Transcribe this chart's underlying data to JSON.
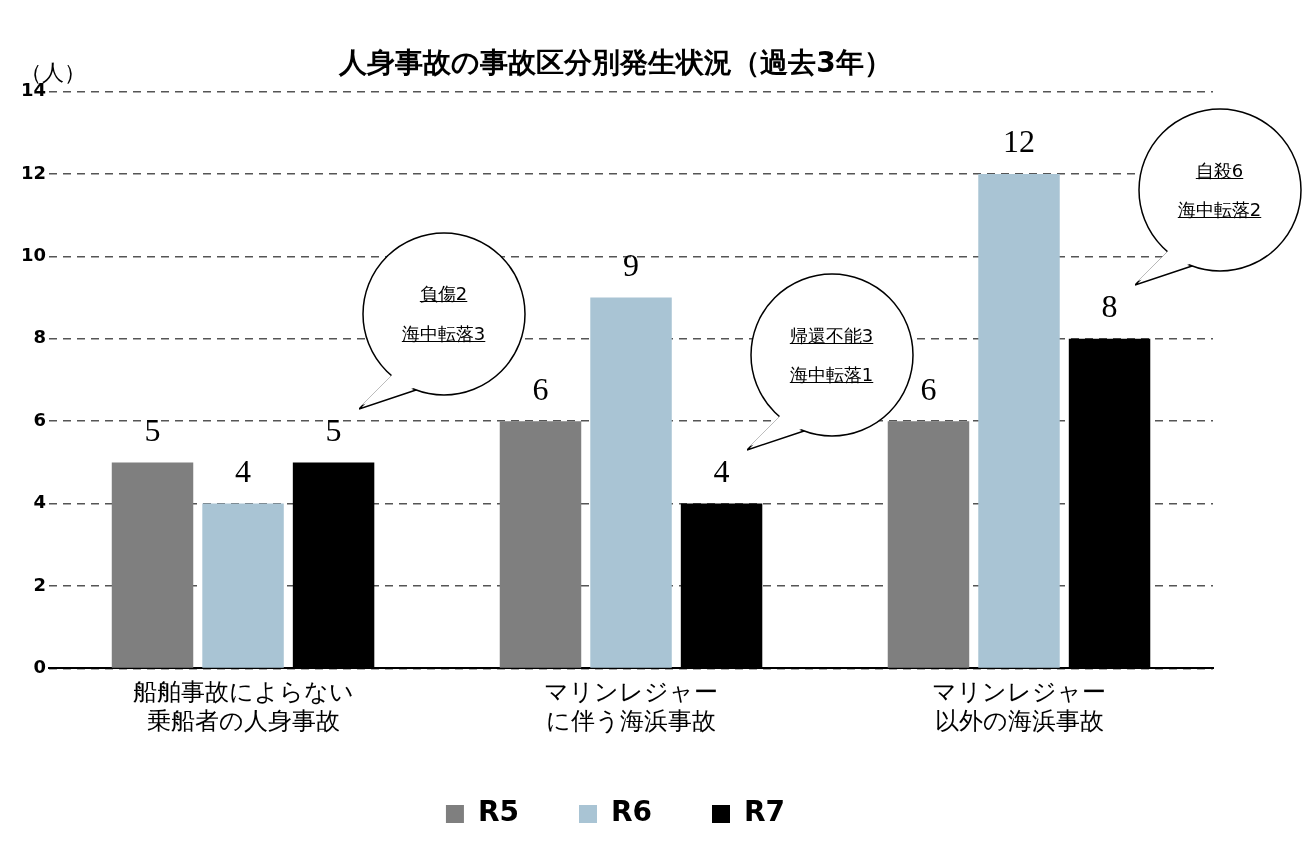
{
  "chart_data": {
    "type": "bar",
    "title": "人身事故の事故区分別発生状況（過去3年）",
    "ylabel": "（人）",
    "categories": [
      "船舶事故によらない乗船者の人身事故",
      "マリンレジャーに伴う海浜事故",
      "マリンレジャー以外の海浜事故"
    ],
    "series": [
      {
        "name": "R5",
        "color": "#7f7f7f",
        "values": [
          5,
          6,
          6
        ]
      },
      {
        "name": "R6",
        "color": "#a9c4d4",
        "values": [
          4,
          9,
          12
        ]
      },
      {
        "name": "R7",
        "color": "#000000",
        "values": [
          5,
          4,
          8
        ]
      }
    ],
    "ylim": [
      0,
      14
    ],
    "yticks": [
      0,
      2,
      4,
      6,
      8,
      10,
      12,
      14
    ],
    "grid": "y",
    "legend": "bottom",
    "data_labels": true,
    "annotations": [
      "負傷2\n海中転落3",
      "帰還不能3\n海中転落1",
      "自殺6\n海中転落2"
    ]
  }
}
